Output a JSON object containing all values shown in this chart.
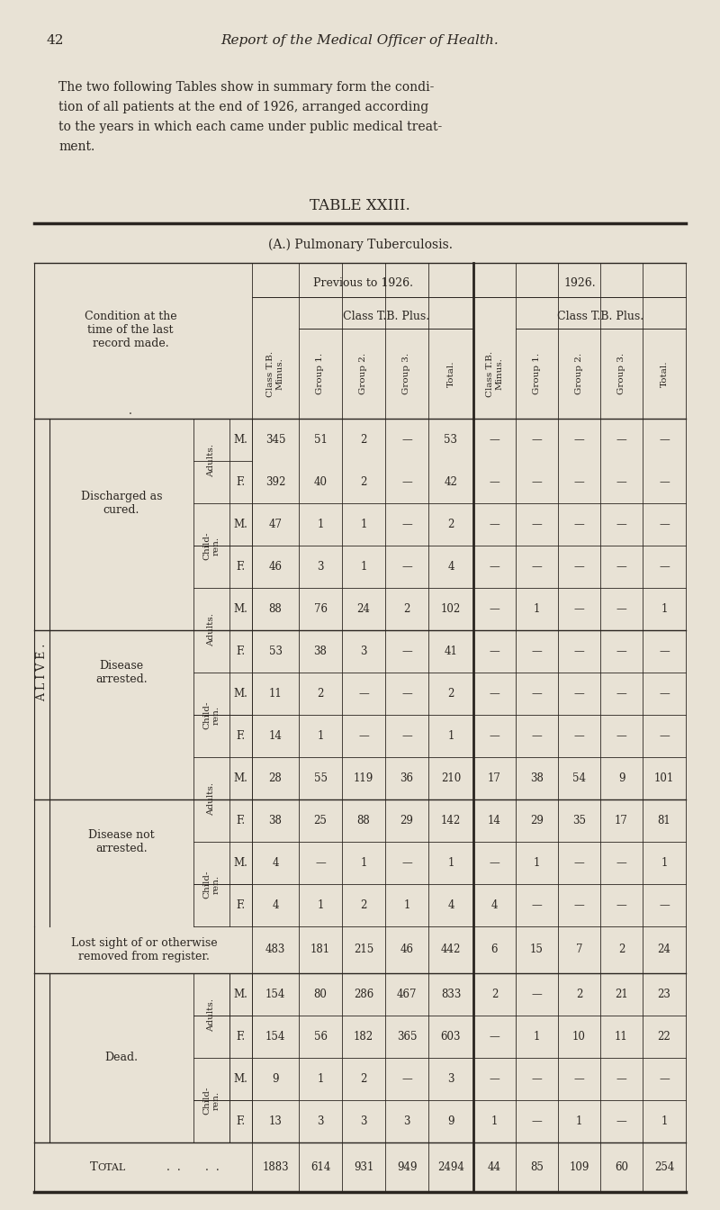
{
  "page_num": "42",
  "page_title": "Report of the Medical Officer of Health.",
  "intro_lines": [
    "The two following Tables show in summary form the condi-",
    "tion of all patients at the end of 1926, arranged according",
    "to the years in which each came under public medical treat-",
    "ment."
  ],
  "table_title": "TABLE XXIII.",
  "subtitle": "(A.) Pulmonary Tuberculosis.",
  "bg_color": "#e8e2d5",
  "text_color": "#2a2520",
  "col_header_labels": [
    "Class T.B.\nMinus.",
    "Group 1.",
    "Group 2.",
    "Group 3.",
    "Total.",
    "Class T.B.\nMinus.",
    "Group 1.",
    "Group 2.",
    "Group 3.",
    "Total."
  ],
  "rows": [
    {
      "section": "ALIVE",
      "category": "Discharged as\ncured.",
      "sub": "Adults.",
      "sex": "M.",
      "vals": [
        "345",
        "51",
        "2",
        "—",
        "53",
        "—",
        "—",
        "—",
        "—",
        "—"
      ]
    },
    {
      "section": "ALIVE",
      "category": "Discharged as\ncured.",
      "sub": "Adults.",
      "sex": "F.",
      "vals": [
        "392",
        "40",
        "2",
        "—",
        "42",
        "—",
        "—",
        "—",
        "—",
        "—"
      ]
    },
    {
      "section": "ALIVE",
      "category": "Discharged as\ncured.",
      "sub": "Child-\nren.",
      "sex": "M.",
      "vals": [
        "47",
        "1",
        "1",
        "—",
        "2",
        "—",
        "—",
        "—",
        "—",
        "—"
      ]
    },
    {
      "section": "ALIVE",
      "category": "Discharged as\ncured.",
      "sub": "Child-\nren.",
      "sex": "F.",
      "vals": [
        "46",
        "3",
        "1",
        "—",
        "4",
        "—",
        "—",
        "—",
        "—",
        "—"
      ]
    },
    {
      "section": "ALIVE",
      "category": "Disease\narrested.",
      "sub": "Adults.",
      "sex": "M.",
      "vals": [
        "88",
        "76",
        "24",
        "2",
        "102",
        "—",
        "1",
        "—",
        "—",
        "1"
      ]
    },
    {
      "section": "ALIVE",
      "category": "Disease\narrested.",
      "sub": "Adults.",
      "sex": "F.",
      "vals": [
        "53",
        "38",
        "3",
        "—",
        "41",
        "—",
        "—",
        "—",
        "—",
        "—"
      ]
    },
    {
      "section": "ALIVE",
      "category": "Disease\narrested.",
      "sub": "Child-\nren.",
      "sex": "M.",
      "vals": [
        "11",
        "2",
        "—",
        "—",
        "2",
        "—",
        "—",
        "—",
        "—",
        "—"
      ]
    },
    {
      "section": "ALIVE",
      "category": "Disease\narrested.",
      "sub": "Child-\nren.",
      "sex": "F.",
      "vals": [
        "14",
        "1",
        "—",
        "—",
        "1",
        "—",
        "—",
        "—",
        "—",
        "—"
      ]
    },
    {
      "section": "ALIVE",
      "category": "Disease not\narrested.",
      "sub": "Adults.",
      "sex": "M.",
      "vals": [
        "28",
        "55",
        "119",
        "36",
        "210",
        "17",
        "38",
        "54",
        "9",
        "101"
      ]
    },
    {
      "section": "ALIVE",
      "category": "Disease not\narrested.",
      "sub": "Adults.",
      "sex": "F.",
      "vals": [
        "38",
        "25",
        "88",
        "29",
        "142",
        "14",
        "29",
        "35",
        "17",
        "81"
      ]
    },
    {
      "section": "ALIVE",
      "category": "Disease not\narrested.",
      "sub": "Child-\nren.",
      "sex": "M.",
      "vals": [
        "4",
        "—",
        "1",
        "—",
        "1",
        "—",
        "1",
        "—",
        "—",
        "1"
      ]
    },
    {
      "section": "ALIVE",
      "category": "Disease not\narrested.",
      "sub": "Child-\nren.",
      "sex": "F.",
      "vals": [
        "4",
        "1",
        "2",
        "1",
        "4",
        "4",
        "—",
        "—",
        "—",
        "—"
      ]
    },
    {
      "section": "LOST",
      "category": "Lost sight of or otherwise\nremoved from register.",
      "sub": "",
      "sex": "",
      "vals": [
        "483",
        "181",
        "215",
        "46",
        "442",
        "6",
        "15",
        "7",
        "2",
        "24"
      ]
    },
    {
      "section": "DEAD",
      "category": "Dead.",
      "sub": "Adults.",
      "sex": "M.",
      "vals": [
        "154",
        "80",
        "286",
        "467",
        "833",
        "2",
        "—",
        "2",
        "21",
        "23"
      ]
    },
    {
      "section": "DEAD",
      "category": "Dead.",
      "sub": "Adults.",
      "sex": "F.",
      "vals": [
        "154",
        "56",
        "182",
        "365",
        "603",
        "—",
        "1",
        "10",
        "11",
        "22"
      ]
    },
    {
      "section": "DEAD",
      "category": "Dead.",
      "sub": "Child-\nren.",
      "sex": "M.",
      "vals": [
        "9",
        "1",
        "2",
        "—",
        "3",
        "—",
        "—",
        "—",
        "—",
        "—"
      ]
    },
    {
      "section": "DEAD",
      "category": "Dead.",
      "sub": "Child-\nren.",
      "sex": "F.",
      "vals": [
        "13",
        "3",
        "3",
        "3",
        "9",
        "1",
        "—",
        "1",
        "—",
        "1"
      ]
    },
    {
      "section": "TOTAL",
      "category": "Total",
      "sub": "",
      "sex": "",
      "vals": [
        "1883",
        "614",
        "931",
        "949",
        "2494",
        "44",
        "85",
        "109",
        "60",
        "254"
      ]
    }
  ]
}
